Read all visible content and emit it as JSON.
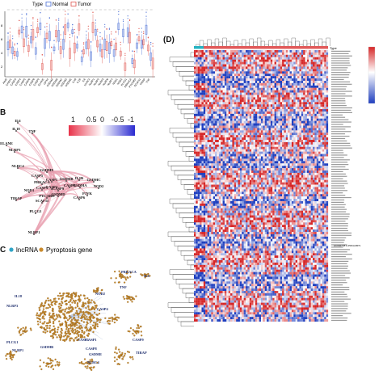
{
  "panel_a": {
    "legend": {
      "title": "Type",
      "items": [
        {
          "label": "Normal",
          "color": "#4a6fd6"
        },
        {
          "label": "Tumor",
          "color": "#e0564f"
        }
      ]
    },
    "y_ticks": [
      "8",
      "6",
      "4",
      "2",
      "0"
    ],
    "genes": [
      "AIM2",
      "CASP1",
      "CASP3",
      "CASP4",
      "CASP5",
      "CASP6",
      "CASP8",
      "CASP9",
      "ELANE",
      "GPX4",
      "GSDMA",
      "GSDMB",
      "GSDMC",
      "GSDMD",
      "GSDME",
      "IL18",
      "IL1B",
      "IL6",
      "NLRC4",
      "NLRP1",
      "NLRP2",
      "NLRP3",
      "NLRP6",
      "NLRP7",
      "NOD1",
      "NOD2",
      "PLCG1",
      "PRKACA",
      "PYCARD",
      "SCAF11",
      "TIRAP",
      "TNF"
    ]
  },
  "panel_b": {
    "letter": "B",
    "scale_labels": [
      "1",
      "0.5",
      "0",
      "-0.5",
      "-1"
    ],
    "nodes": [
      "IL6",
      "IL18",
      "TNF",
      "ELANE",
      "NLRP3",
      "NLRC4",
      "GSDME",
      "CASP1",
      "CASP5",
      "CASP3",
      "PRKACA",
      "NOD1",
      "CASP4",
      "CASP8",
      "TIRAP",
      "PYCARD",
      "GSDMD",
      "SCAF11",
      "PLCG1",
      "NLRP1",
      "IL1B",
      "GSDMB",
      "PJVK",
      "GSDMC",
      "NOD2",
      "GSDMA",
      "CASP9",
      "CASP6"
    ]
  },
  "panel_c": {
    "letter": "C",
    "legend": [
      {
        "label": "lncRNA",
        "color": "#2fa4c6"
      },
      {
        "label": "Pyroptosis gene",
        "color": "#c98a2b"
      }
    ],
    "node_labels": [
      "IL18",
      "NLRP3",
      "PLCG1",
      "NLRP1",
      "GSDMB",
      "CASP3",
      "CASP1",
      "NLRC4",
      "GSDME",
      "CASP8",
      "CASP9",
      "TIRAP",
      "TNF",
      "PRKACA",
      "IL6",
      "NOD2",
      "CASP4"
    ]
  },
  "panel_d": {
    "letter": "(D)",
    "header_label": "Type",
    "colors": {
      "high": "#d62728",
      "mid": "#ffffff",
      "low": "#1f3fbf",
      "normal_bar": "#27b3c2",
      "tumor_bar": "#e15a5a"
    },
    "side_annotation": "AC092718.1-PRKACB?1"
  }
}
